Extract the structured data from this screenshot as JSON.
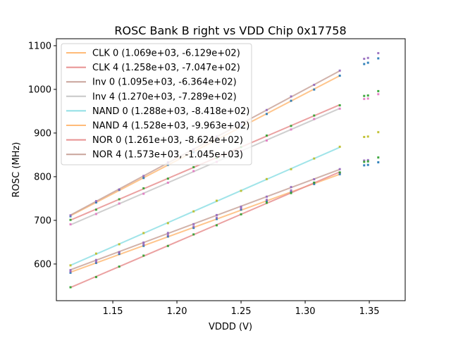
{
  "chart_data": {
    "type": "scatter",
    "title": "ROSC Bank B right vs VDD Chip 0x17758",
    "xlabel": "VDDD (V)",
    "ylabel": "ROSC (MHz)",
    "xlim": [
      1.106,
      1.378
    ],
    "ylim": [
      516,
      1116
    ],
    "xticks": [
      1.15,
      1.2,
      1.25,
      1.3,
      1.35
    ],
    "xtick_labels": [
      "1.15",
      "1.20",
      "1.25",
      "1.30",
      "1.35"
    ],
    "yticks": [
      600,
      700,
      800,
      900,
      1000,
      1100
    ],
    "ytick_labels": [
      "600",
      "700",
      "800",
      "900",
      "1000",
      "1100"
    ],
    "grid": false,
    "legend_position": "top-left",
    "fit_x_range": [
      1.117,
      1.327
    ],
    "fits": [
      {
        "name": "CLK 0",
        "label": "CLK 0 (1.069e+03, -6.129e+02)",
        "slope": 1069,
        "intercept": -612.9,
        "color": "#ffbb78"
      },
      {
        "name": "CLK 4",
        "label": "CLK 4 (1.258e+03, -7.047e+02)",
        "slope": 1258,
        "intercept": -704.7,
        "color": "#e89090"
      },
      {
        "name": "Inv 0",
        "label": "Inv 0 (1.095e+03, -6.364e+02)",
        "slope": 1095,
        "intercept": -636.4,
        "color": "#c9a49b"
      },
      {
        "name": "Inv 4",
        "label": "Inv 4 (1.270e+03, -7.289e+02)",
        "slope": 1270,
        "intercept": -728.9,
        "color": "#c7c7c7"
      },
      {
        "name": "NAND 0",
        "label": "NAND 0 (1.288e+03, -8.418e+02)",
        "slope": 1288,
        "intercept": -841.8,
        "color": "#8fdfe5"
      },
      {
        "name": "NAND 4",
        "label": "NAND 4 (1.528e+03, -9.963e+02)",
        "slope": 1528,
        "intercept": -996.3,
        "color": "#ffbb78"
      },
      {
        "name": "NOR 0",
        "label": "NOR 0 (1.261e+03, -8.624e+02)",
        "slope": 1261,
        "intercept": -862.4,
        "color": "#e89090"
      },
      {
        "name": "NOR 4",
        "label": "NOR 4 (1.573e+03, -1.045e+03)",
        "slope": 1573,
        "intercept": -1045,
        "color": "#c9a49b"
      }
    ],
    "x_points": [
      1.117,
      1.137,
      1.155,
      1.174,
      1.193,
      1.213,
      1.231,
      1.25,
      1.27,
      1.289,
      1.307,
      1.327
    ],
    "point_series": [
      {
        "name": "group-top",
        "color": "#9467bd",
        "offsets": [
          2,
          2,
          1,
          1,
          1,
          1,
          1,
          1,
          2,
          2,
          2,
          3
        ]
      },
      {
        "name": "group-top-b",
        "color": "#1f77b4",
        "offsets": [
          -2,
          -2,
          -2,
          -2,
          -2,
          -2,
          -2,
          -2,
          -2,
          -2,
          -2,
          -2
        ]
      },
      {
        "name": "group-mid",
        "color": "#2ca02c",
        "offsets": [
          0,
          0,
          0,
          0,
          0,
          0,
          0,
          0,
          0,
          0,
          0,
          3
        ]
      },
      {
        "name": "group-mid-b",
        "color": "#e377c2",
        "offsets": [
          -8,
          -5,
          -5,
          -5,
          -5,
          -5,
          -5,
          -5,
          -5,
          -5,
          -5,
          -3
        ]
      },
      {
        "name": "group-nand",
        "color": "#bcbd22",
        "offsets": [
          -8,
          -5,
          -5,
          -5,
          -5,
          -5,
          -5,
          -5,
          -5,
          -5,
          -5,
          -5
        ]
      }
    ],
    "outliers": [
      {
        "x": 1.346,
        "y": 1070,
        "color": "#9467bd"
      },
      {
        "x": 1.349,
        "y": 1072,
        "color": "#9467bd"
      },
      {
        "x": 1.357,
        "y": 1083,
        "color": "#9467bd"
      },
      {
        "x": 1.346,
        "y": 1058,
        "color": "#1f77b4"
      },
      {
        "x": 1.349,
        "y": 1061,
        "color": "#1f77b4"
      },
      {
        "x": 1.357,
        "y": 1071,
        "color": "#1f77b4"
      },
      {
        "x": 1.346,
        "y": 985,
        "color": "#2ca02c"
      },
      {
        "x": 1.349,
        "y": 986,
        "color": "#2ca02c"
      },
      {
        "x": 1.357,
        "y": 996,
        "color": "#2ca02c"
      },
      {
        "x": 1.346,
        "y": 978,
        "color": "#e377c2"
      },
      {
        "x": 1.349,
        "y": 979,
        "color": "#e377c2"
      },
      {
        "x": 1.357,
        "y": 989,
        "color": "#e377c2"
      },
      {
        "x": 1.346,
        "y": 891,
        "color": "#bcbd22"
      },
      {
        "x": 1.349,
        "y": 892,
        "color": "#bcbd22"
      },
      {
        "x": 1.357,
        "y": 902,
        "color": "#bcbd22"
      },
      {
        "x": 1.346,
        "y": 837,
        "color": "#9467bd"
      },
      {
        "x": 1.349,
        "y": 838,
        "color": "#9467bd"
      },
      {
        "x": 1.346,
        "y": 834,
        "color": "#2ca02c"
      },
      {
        "x": 1.349,
        "y": 835,
        "color": "#2ca02c"
      },
      {
        "x": 1.357,
        "y": 844,
        "color": "#2ca02c"
      },
      {
        "x": 1.346,
        "y": 826,
        "color": "#1f77b4"
      },
      {
        "x": 1.349,
        "y": 827,
        "color": "#1f77b4"
      },
      {
        "x": 1.357,
        "y": 833,
        "color": "#1f77b4"
      }
    ]
  }
}
